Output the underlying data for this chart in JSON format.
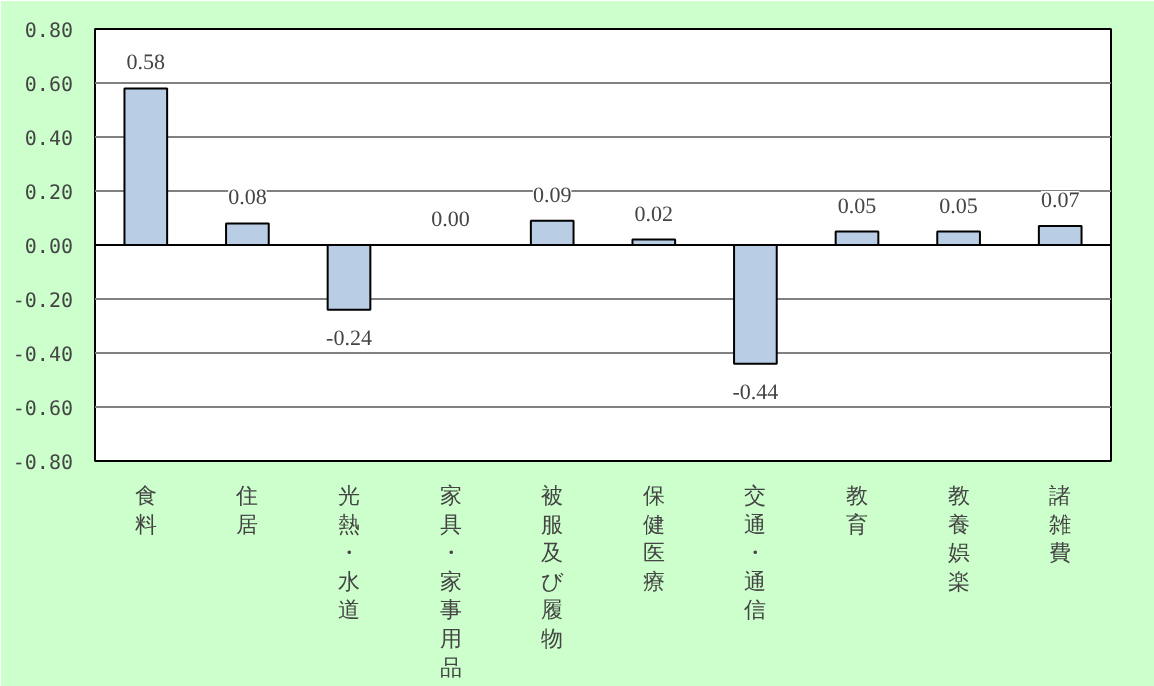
{
  "chart_data": {
    "type": "bar",
    "categories": [
      "食料",
      "住居",
      "光熱・水道",
      "家具・家事用品",
      "被服及び履物",
      "保健医療",
      "交通・通信",
      "教育",
      "教養娯楽",
      "諸雑費"
    ],
    "values": [
      0.58,
      0.08,
      -0.24,
      0.0,
      0.09,
      0.02,
      -0.44,
      0.05,
      0.05,
      0.07
    ],
    "color": "#b9cde5",
    "value_labels": [
      "0.58",
      "0.08",
      "-0.24",
      "0.00",
      "0.09",
      "0.02",
      "-0.44",
      "0.05",
      "0.05",
      "0.07"
    ],
    "ylim": [
      -0.8,
      0.8
    ],
    "yticks": [
      {
        "value": -0.8,
        "label": "-0.80"
      },
      {
        "value": -0.6,
        "label": "-0.60"
      },
      {
        "value": -0.4,
        "label": "-0.40"
      },
      {
        "value": -0.2,
        "label": "-0.20"
      },
      {
        "value": 0,
        "label": "0.00"
      },
      {
        "value": 0.2,
        "label": "0.20"
      },
      {
        "value": 0.4,
        "label": "0.40"
      },
      {
        "value": 0.6,
        "label": "0.60"
      },
      {
        "value": 0.8,
        "label": "0.80"
      }
    ],
    "grid": "y"
  }
}
